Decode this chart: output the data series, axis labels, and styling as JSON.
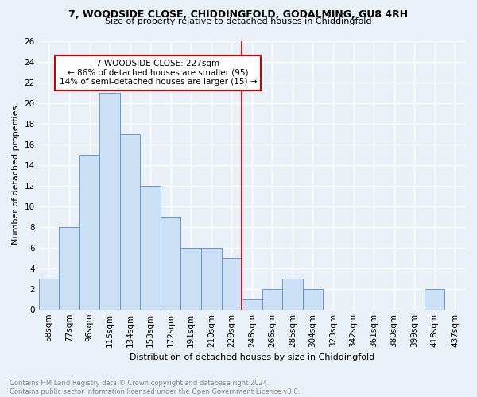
{
  "title1": "7, WOODSIDE CLOSE, CHIDDINGFOLD, GODALMING, GU8 4RH",
  "title2": "Size of property relative to detached houses in Chiddingfold",
  "xlabel": "Distribution of detached houses by size in Chiddingfold",
  "ylabel": "Number of detached properties",
  "bin_labels": [
    "58sqm",
    "77sqm",
    "96sqm",
    "115sqm",
    "134sqm",
    "153sqm",
    "172sqm",
    "191sqm",
    "210sqm",
    "229sqm",
    "248sqm",
    "266sqm",
    "285sqm",
    "304sqm",
    "323sqm",
    "342sqm",
    "361sqm",
    "380sqm",
    "399sqm",
    "418sqm",
    "437sqm"
  ],
  "bar_values": [
    3,
    8,
    15,
    21,
    17,
    12,
    9,
    6,
    6,
    5,
    1,
    2,
    3,
    2,
    0,
    0,
    0,
    0,
    0,
    2,
    0
  ],
  "bar_color": "#cce0f5",
  "bar_edge_color": "#6699cc",
  "vline_x_index": 9.5,
  "vline_color": "#cc0000",
  "annotation_text": "7 WOODSIDE CLOSE: 227sqm\n← 86% of detached houses are smaller (95)\n14% of semi-detached houses are larger (15) →",
  "annotation_box_color": "#cc0000",
  "ylim": [
    0,
    26
  ],
  "yticks": [
    0,
    2,
    4,
    6,
    8,
    10,
    12,
    14,
    16,
    18,
    20,
    22,
    24,
    26
  ],
  "footnote": "Contains HM Land Registry data © Crown copyright and database right 2024.\nContains public sector information licensed under the Open Government Licence v3.0.",
  "bg_color": "#eaf0f8",
  "grid_color": "#ffffff",
  "title1_fontsize": 9.0,
  "title2_fontsize": 8.0,
  "xlabel_fontsize": 8.0,
  "ylabel_fontsize": 8.0,
  "tick_fontsize": 7.5,
  "annot_fontsize": 7.5,
  "footnote_fontsize": 6.0,
  "footnote_color": "#888888"
}
